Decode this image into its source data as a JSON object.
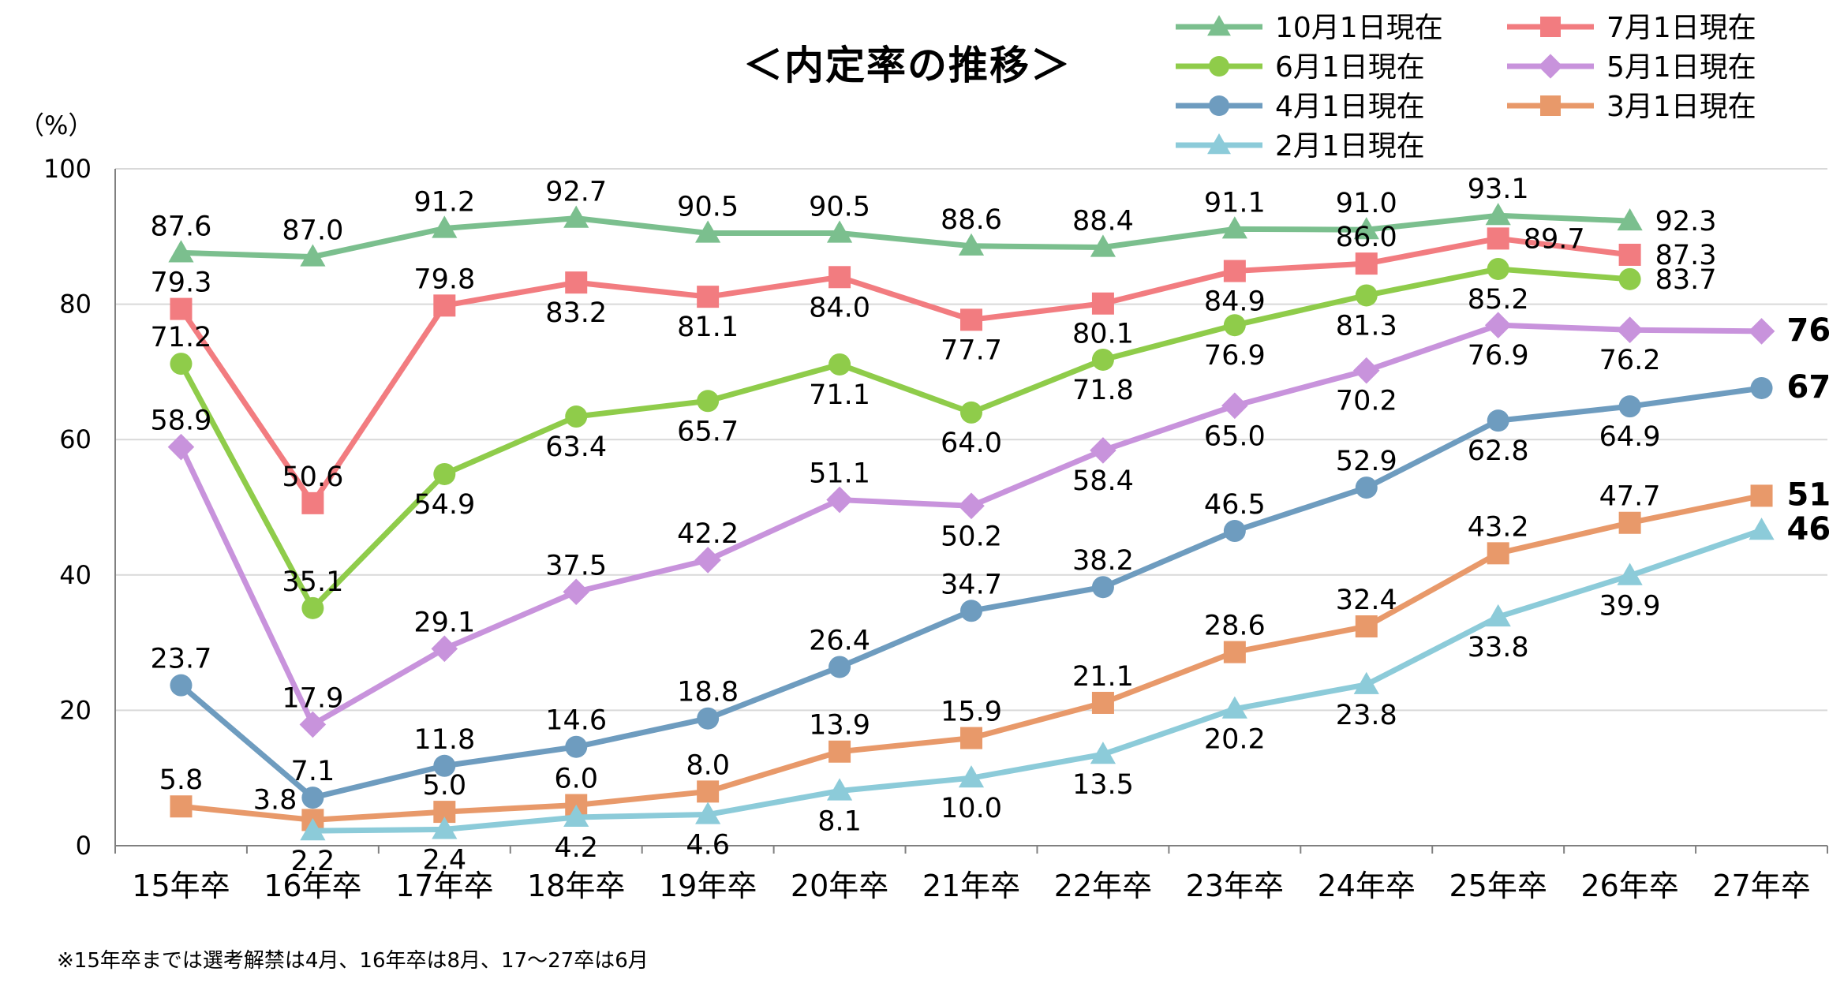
{
  "chart_data": {
    "type": "line",
    "title": "＜内定率の推移＞",
    "ylabel": "（%）",
    "xlabel": "",
    "ylim": [
      0,
      100
    ],
    "yticks": [
      0,
      20,
      40,
      60,
      80,
      100
    ],
    "grid": true,
    "legend_position": "top-right",
    "categories": [
      "15年卒",
      "16年卒",
      "17年卒",
      "18年卒",
      "19年卒",
      "20年卒",
      "21年卒",
      "22年卒",
      "23年卒",
      "24年卒",
      "25年卒",
      "26年卒",
      "27年卒"
    ],
    "series": [
      {
        "name": "10月1日現在",
        "color": "#7bbf8e",
        "marker": "triangle",
        "values": [
          87.6,
          87.0,
          91.2,
          92.7,
          90.5,
          90.5,
          88.6,
          88.4,
          91.1,
          91.0,
          93.1,
          92.3,
          null
        ]
      },
      {
        "name": "7月1日現在",
        "color": "#f27c80",
        "marker": "square",
        "values": [
          79.3,
          50.6,
          79.8,
          83.2,
          81.1,
          84.0,
          77.7,
          80.1,
          84.9,
          86.0,
          89.7,
          87.3,
          null
        ]
      },
      {
        "name": "6月1日現在",
        "color": "#8fcc4a",
        "marker": "circle",
        "values": [
          71.2,
          35.1,
          54.9,
          63.4,
          65.7,
          71.1,
          64.0,
          71.8,
          76.9,
          81.3,
          85.2,
          83.7,
          null
        ]
      },
      {
        "name": "5月1日現在",
        "color": "#c893dc",
        "marker": "diamond",
        "values": [
          58.9,
          17.9,
          29.1,
          37.5,
          42.2,
          51.1,
          50.2,
          58.4,
          65.0,
          70.2,
          76.9,
          76.2,
          76.0
        ]
      },
      {
        "name": "4月1日現在",
        "color": "#6e9cbf",
        "marker": "circle",
        "values": [
          23.7,
          7.1,
          11.8,
          14.6,
          18.8,
          26.4,
          34.7,
          38.2,
          46.5,
          52.9,
          62.8,
          64.9,
          67.6
        ]
      },
      {
        "name": "3月1日現在",
        "color": "#e8996a",
        "marker": "square",
        "values": [
          5.8,
          3.8,
          5.0,
          6.0,
          8.0,
          13.9,
          15.9,
          21.1,
          28.6,
          32.4,
          43.2,
          47.7,
          51.7
        ]
      },
      {
        "name": "2月1日現在",
        "color": "#8ccbd9",
        "marker": "triangle",
        "values": [
          null,
          2.2,
          2.4,
          4.2,
          4.6,
          8.1,
          10.0,
          13.5,
          20.2,
          23.8,
          33.8,
          39.9,
          46.6
        ]
      }
    ],
    "data_labels": [
      [
        {
          "text": "87.6",
          "pos": "above"
        },
        {
          "text": "87.0",
          "pos": "above"
        },
        {
          "text": "91.2",
          "pos": "above"
        },
        {
          "text": "92.7",
          "pos": "above"
        },
        {
          "text": "90.5",
          "pos": "above"
        },
        {
          "text": "90.5",
          "pos": "above"
        },
        {
          "text": "88.6",
          "pos": "above"
        },
        {
          "text": "88.4",
          "pos": "above"
        },
        {
          "text": "91.1",
          "pos": "above"
        },
        {
          "text": "91.0",
          "pos": "above"
        },
        {
          "text": "93.1",
          "pos": "above"
        },
        {
          "text": "92.3",
          "pos": "right"
        },
        null
      ],
      [
        {
          "text": "79.3",
          "pos": "above"
        },
        {
          "text": "50.6",
          "pos": "above"
        },
        {
          "text": "79.8",
          "pos": "above"
        },
        {
          "text": "83.2",
          "pos": "below"
        },
        {
          "text": "81.1",
          "pos": "below"
        },
        {
          "text": "84.0",
          "pos": "below"
        },
        {
          "text": "77.7",
          "pos": "below"
        },
        {
          "text": "80.1",
          "pos": "below"
        },
        {
          "text": "84.9",
          "pos": "below"
        },
        {
          "text": "86.0",
          "pos": "above"
        },
        {
          "text": "89.7",
          "pos": "right"
        },
        {
          "text": "87.3",
          "pos": "right"
        },
        null
      ],
      [
        {
          "text": "71.2",
          "pos": "above"
        },
        {
          "text": "35.1",
          "pos": "above"
        },
        {
          "text": "54.9",
          "pos": "below"
        },
        {
          "text": "63.4",
          "pos": "below"
        },
        {
          "text": "65.7",
          "pos": "below"
        },
        {
          "text": "71.1",
          "pos": "below"
        },
        {
          "text": "64.0",
          "pos": "below"
        },
        {
          "text": "71.8",
          "pos": "below"
        },
        {
          "text": "76.9",
          "pos": "below"
        },
        {
          "text": "81.3",
          "pos": "below"
        },
        {
          "text": "85.2",
          "pos": "below"
        },
        {
          "text": "83.7",
          "pos": "right"
        },
        null
      ],
      [
        {
          "text": "58.9",
          "pos": "above"
        },
        {
          "text": "17.9",
          "pos": "above"
        },
        {
          "text": "29.1",
          "pos": "above"
        },
        {
          "text": "37.5",
          "pos": "above"
        },
        {
          "text": "42.2",
          "pos": "above"
        },
        {
          "text": "51.1",
          "pos": "above"
        },
        {
          "text": "50.2",
          "pos": "below"
        },
        {
          "text": "58.4",
          "pos": "below"
        },
        {
          "text": "65.0",
          "pos": "below"
        },
        {
          "text": "70.2",
          "pos": "below"
        },
        {
          "text": "76.9",
          "pos": "below"
        },
        {
          "text": "76.2",
          "pos": "below"
        },
        {
          "text": "76.0",
          "pos": "right",
          "bold": true
        }
      ],
      [
        {
          "text": "23.7",
          "pos": "above"
        },
        {
          "text": "7.1",
          "pos": "above"
        },
        {
          "text": "11.8",
          "pos": "above"
        },
        {
          "text": "14.6",
          "pos": "above"
        },
        {
          "text": "18.8",
          "pos": "above"
        },
        {
          "text": "26.4",
          "pos": "above"
        },
        {
          "text": "34.7",
          "pos": "above"
        },
        {
          "text": "38.2",
          "pos": "above"
        },
        {
          "text": "46.5",
          "pos": "above"
        },
        {
          "text": "52.9",
          "pos": "above"
        },
        {
          "text": "62.8",
          "pos": "below"
        },
        {
          "text": "64.9",
          "pos": "below"
        },
        {
          "text": "67.6",
          "pos": "right",
          "bold": true
        }
      ],
      [
        {
          "text": "5.8",
          "pos": "above"
        },
        {
          "text": "3.8",
          "pos": "left"
        },
        {
          "text": "5.0",
          "pos": "above"
        },
        {
          "text": "6.0",
          "pos": "above"
        },
        {
          "text": "8.0",
          "pos": "above"
        },
        {
          "text": "13.9",
          "pos": "above"
        },
        {
          "text": "15.9",
          "pos": "above"
        },
        {
          "text": "21.1",
          "pos": "above"
        },
        {
          "text": "28.6",
          "pos": "above"
        },
        {
          "text": "32.4",
          "pos": "above"
        },
        {
          "text": "43.2",
          "pos": "above"
        },
        {
          "text": "47.7",
          "pos": "above"
        },
        {
          "text": "51.7",
          "pos": "right",
          "bold": true
        }
      ],
      [
        null,
        {
          "text": "2.2",
          "pos": "below"
        },
        {
          "text": "2.4",
          "pos": "below"
        },
        {
          "text": "4.2",
          "pos": "below"
        },
        {
          "text": "4.6",
          "pos": "below"
        },
        {
          "text": "8.1",
          "pos": "below"
        },
        {
          "text": "10.0",
          "pos": "below"
        },
        {
          "text": "13.5",
          "pos": "below"
        },
        {
          "text": "20.2",
          "pos": "below"
        },
        {
          "text": "23.8",
          "pos": "below"
        },
        {
          "text": "33.8",
          "pos": "below"
        },
        {
          "text": "39.9",
          "pos": "below"
        },
        {
          "text": "46.6",
          "pos": "right",
          "bold": true
        }
      ]
    ],
    "legend_order": [
      0,
      1,
      2,
      3,
      4,
      5,
      6
    ],
    "note": "※15年卒までは選考解禁は4月、16年卒は8月、17～27卒は6月"
  }
}
